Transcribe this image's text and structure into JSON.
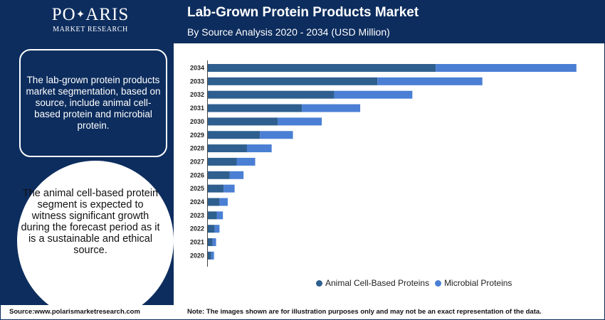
{
  "logo": {
    "name": "POLARIS",
    "subtitle": "MARKET RESEARCH"
  },
  "header": {
    "title": "Lab-Grown Protein Products Market",
    "subtitle": "By Source Analysis 2020 - 2034 (USD Million)"
  },
  "panel": {
    "box_text": "The lab-grown protein products market segmentation, based on source, include animal cell-based protein and microbial protein.",
    "circle_text": "The animal cell-based protein segment is expected to witness significant growth during the forecast period as it is a sustainable and ethical source."
  },
  "colors": {
    "navy": "#0d2d5e",
    "animal": "#2e5f8e",
    "microbial": "#4a7fd4"
  },
  "chart_data": {
    "type": "bar",
    "orientation": "horizontal",
    "stacked": true,
    "categories": [
      "2034",
      "2033",
      "2032",
      "2031",
      "2030",
      "2029",
      "2028",
      "2027",
      "2026",
      "2025",
      "2024",
      "2023",
      "2022",
      "2021",
      "2020"
    ],
    "series": [
      {
        "name": "Animal Cell-Based Proteins",
        "color": "#2e5f8e",
        "values": [
          332,
          247,
          184,
          137,
          102,
          76,
          57,
          42,
          32,
          23,
          17,
          13,
          10,
          7,
          5
        ]
      },
      {
        "name": "Microbial Proteins",
        "color": "#4a7fd4",
        "values": [
          205,
          153,
          114,
          85,
          64,
          48,
          36,
          27,
          20,
          16,
          12,
          9,
          7,
          5,
          4
        ]
      }
    ],
    "xlim": [
      0,
      560
    ],
    "grid": false,
    "legend": "bottom",
    "show_x_axis_labels": false
  },
  "footer": {
    "source": "Source:www.polarismarketresearch.com",
    "note": "Note: The images shown are for illustration purposes only and may not be an exact representation of the data."
  }
}
